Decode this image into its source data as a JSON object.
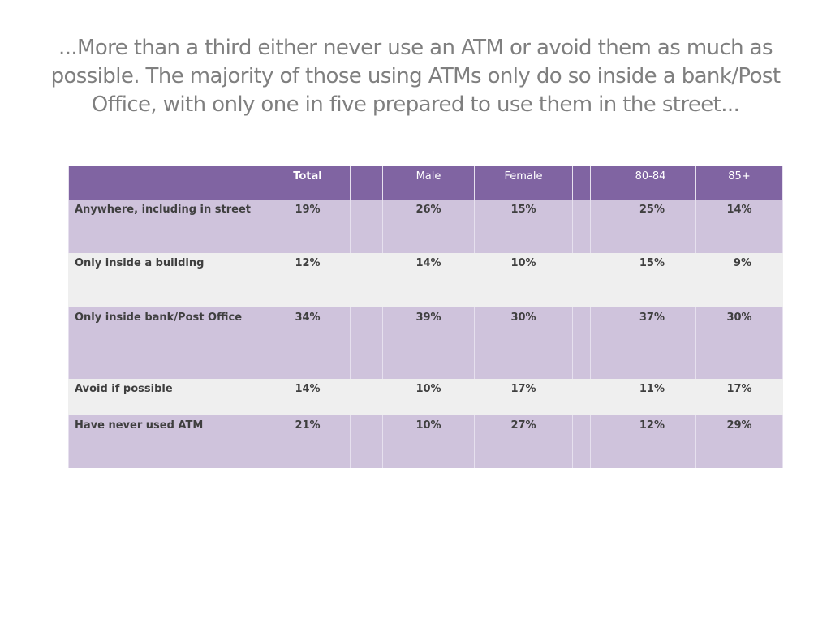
{
  "heading": "...More than a third either never use an ATM or avoid them as much as possible. The majority of those using ATMs only do so inside a bank/Post Office, with only one in five prepared to use them in the street...",
  "table": {
    "columns": [
      "",
      "Total",
      "",
      "",
      "Male",
      "Female",
      "",
      "",
      "80-84",
      "85+"
    ],
    "rows": [
      {
        "label": "Anywhere, including in street",
        "total": "19%",
        "male": "26%",
        "female": "15%",
        "age_80_84": "25%",
        "age_85_plus": "14%"
      },
      {
        "label": "Only inside a building",
        "total": "12%",
        "male": "14%",
        "female": "10%",
        "age_80_84": "15%",
        "age_85_plus": "9%"
      },
      {
        "label": "Only inside bank/Post Office",
        "total": "34%",
        "male": "39%",
        "female": "30%",
        "age_80_84": "37%",
        "age_85_plus": "30%"
      },
      {
        "label": "Avoid if possible",
        "total": "14%",
        "male": "10%",
        "female": "17%",
        "age_80_84": "11%",
        "age_85_plus": "17%"
      },
      {
        "label": "Have never used ATM",
        "total": "21%",
        "male": "10%",
        "female": "27%",
        "age_80_84": "12%",
        "age_85_plus": "29%"
      }
    ]
  },
  "colors": {
    "header_bg": "#8064a2",
    "row_odd_bg": "#cfc3dc",
    "row_even_bg": "#efefef",
    "heading_text": "#7f7f7f"
  }
}
